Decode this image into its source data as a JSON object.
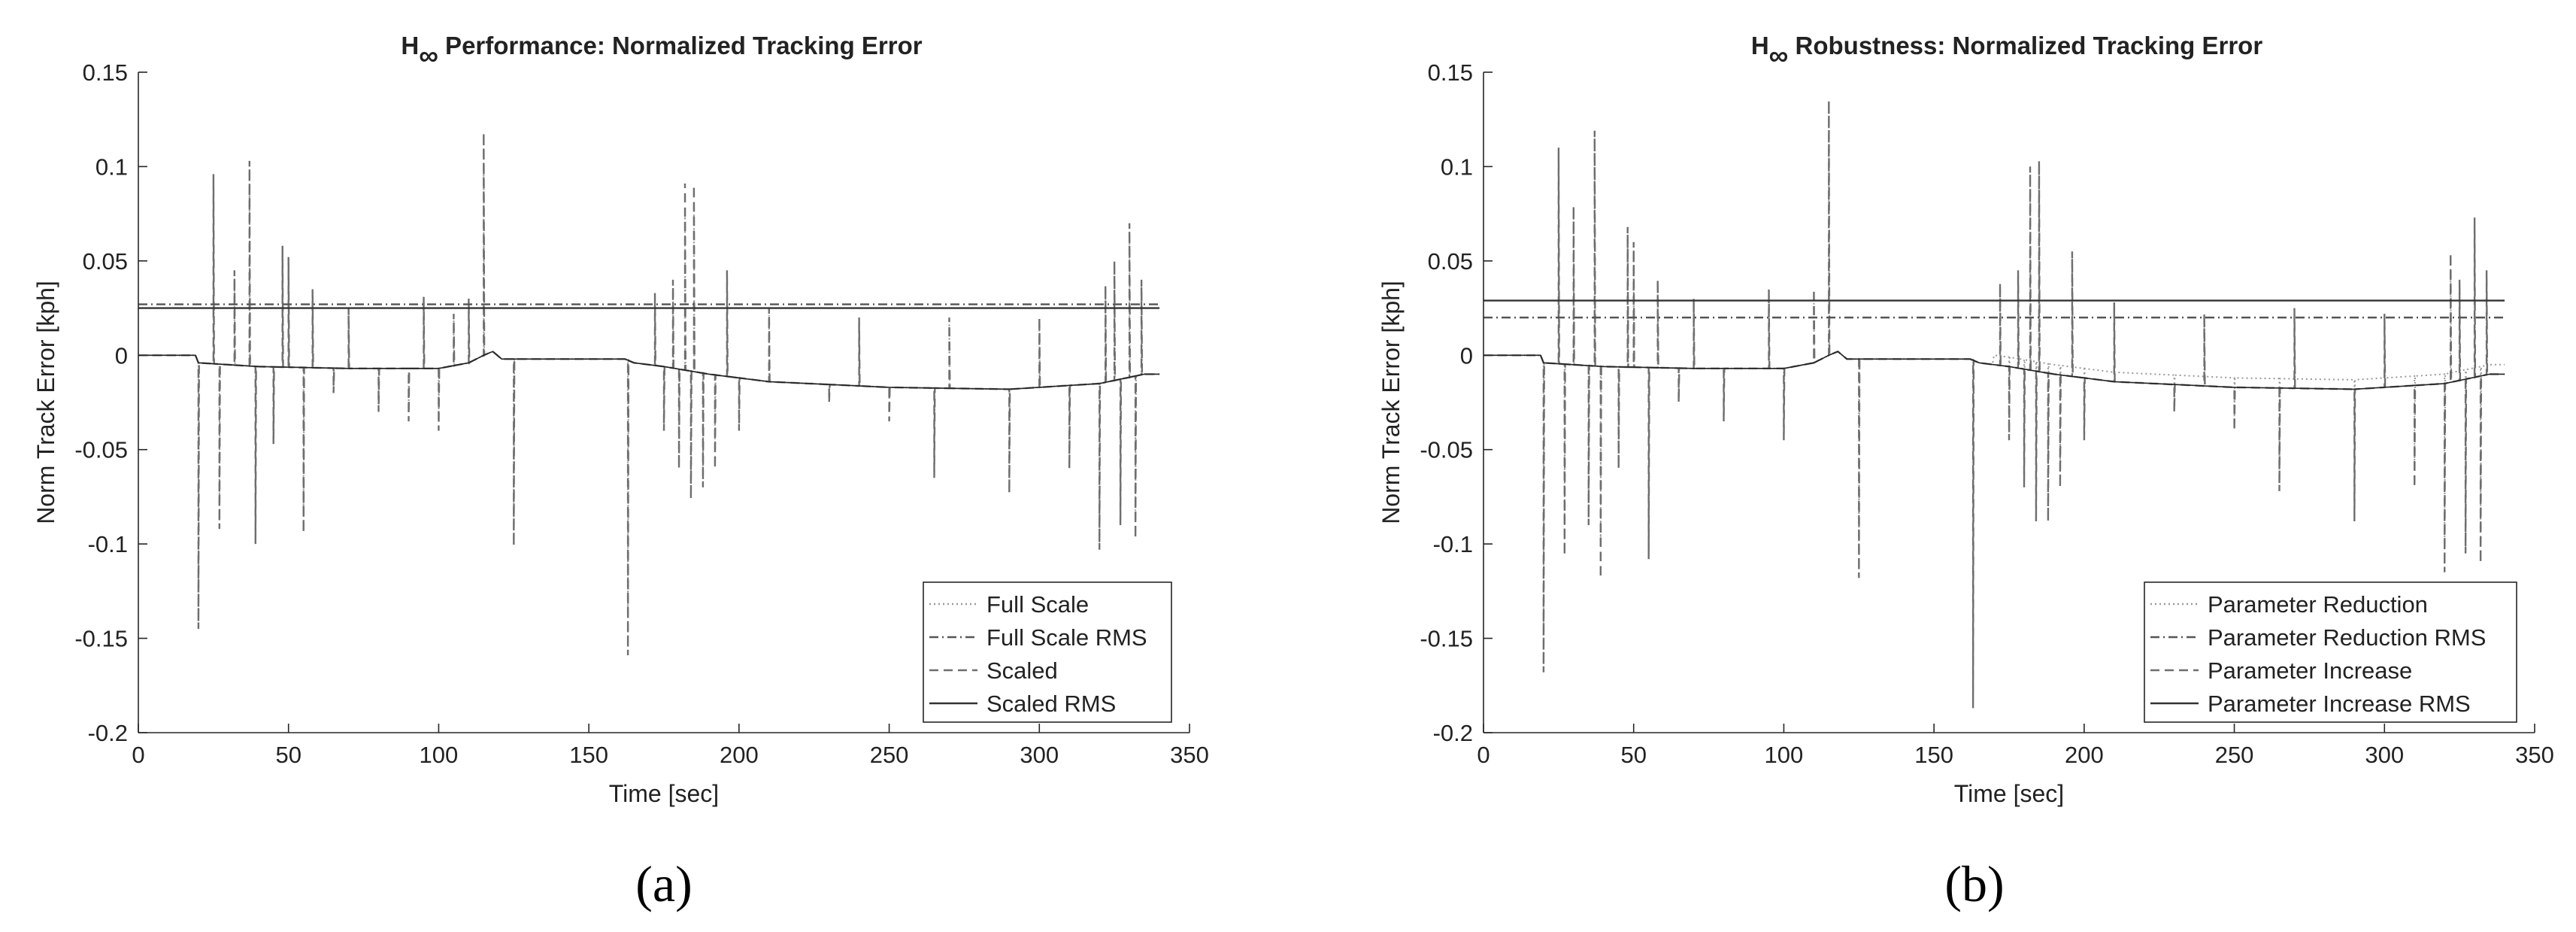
{
  "chart_data": [
    {
      "type": "line",
      "panel_label": "(a)",
      "title_prefix": "H",
      "title_subscript": "∞",
      "title_suffix": " Performance: Normalized Tracking Error",
      "xlabel": "Time [sec]",
      "ylabel": "Norm Track Error [kph]",
      "xlim": [
        0,
        350
      ],
      "ylim": [
        -0.2,
        0.15
      ],
      "x_ticks": [
        "0",
        "50",
        "100",
        "150",
        "200",
        "250",
        "300",
        "350"
      ],
      "y_ticks": [
        "-0.2",
        "-0.15",
        "-0.1",
        "-0.05",
        "0",
        "0.05",
        "0.1",
        "0.15"
      ],
      "grid": false,
      "legend_position": "bottom-right",
      "baseline": [
        [
          0,
          0
        ],
        [
          19,
          0
        ],
        [
          20,
          -0.004
        ],
        [
          40,
          -0.006
        ],
        [
          70,
          -0.007
        ],
        [
          100,
          -0.007
        ],
        [
          110,
          -0.004
        ],
        [
          115,
          0.0
        ],
        [
          118,
          0.002
        ],
        [
          121,
          -0.002
        ],
        [
          125,
          -0.002
        ],
        [
          162,
          -0.002
        ],
        [
          165,
          -0.004
        ],
        [
          175,
          -0.006
        ],
        [
          190,
          -0.01
        ],
        [
          210,
          -0.014
        ],
        [
          250,
          -0.017
        ],
        [
          290,
          -0.018
        ],
        [
          320,
          -0.015
        ],
        [
          335,
          -0.01
        ],
        [
          340,
          -0.01
        ]
      ],
      "spikes": [
        [
          20,
          -0.145
        ],
        [
          25,
          0.096
        ],
        [
          27,
          -0.092
        ],
        [
          32,
          0.045
        ],
        [
          37,
          0.103
        ],
        [
          39,
          -0.1
        ],
        [
          45,
          -0.047
        ],
        [
          48,
          0.058
        ],
        [
          50,
          0.052
        ],
        [
          55,
          -0.094
        ],
        [
          58,
          0.035
        ],
        [
          65,
          -0.02
        ],
        [
          70,
          0.025
        ],
        [
          80,
          -0.03
        ],
        [
          90,
          -0.035
        ],
        [
          95,
          0.031
        ],
        [
          100,
          -0.04
        ],
        [
          105,
          0.022
        ],
        [
          110,
          0.03
        ],
        [
          115,
          0.118
        ],
        [
          125,
          -0.101
        ],
        [
          163,
          -0.159
        ],
        [
          172,
          0.033
        ],
        [
          175,
          -0.04
        ],
        [
          178,
          0.04
        ],
        [
          180,
          -0.06
        ],
        [
          182,
          0.091
        ],
        [
          184,
          -0.076
        ],
        [
          185,
          0.09
        ],
        [
          188,
          -0.07
        ],
        [
          192,
          -0.06
        ],
        [
          196,
          0.045
        ],
        [
          200,
          -0.04
        ],
        [
          210,
          0.025
        ],
        [
          230,
          -0.025
        ],
        [
          240,
          0.02
        ],
        [
          250,
          -0.035
        ],
        [
          265,
          -0.065
        ],
        [
          270,
          0.02
        ],
        [
          290,
          -0.073
        ],
        [
          300,
          0.02
        ],
        [
          310,
          -0.06
        ],
        [
          320,
          -0.103
        ],
        [
          322,
          0.037
        ],
        [
          325,
          0.05
        ],
        [
          327,
          -0.09
        ],
        [
          330,
          0.07
        ],
        [
          332,
          -0.097
        ],
        [
          334,
          0.04
        ]
      ],
      "series": [
        {
          "name": "Full Scale",
          "style": "dotted"
        },
        {
          "name": "Full Scale RMS",
          "style": "dashdot",
          "value": 0.027
        },
        {
          "name": "Scaled",
          "style": "dashed"
        },
        {
          "name": "Scaled RMS",
          "style": "solid",
          "value": 0.025
        }
      ]
    },
    {
      "type": "line",
      "panel_label": "(b)",
      "title_prefix": "H",
      "title_subscript": "∞",
      "title_suffix": " Robustness: Normalized Tracking Error",
      "xlabel": "Time [sec]",
      "ylabel": "Norm Track Error [kph]",
      "xlim": [
        0,
        350
      ],
      "ylim": [
        -0.2,
        0.15
      ],
      "x_ticks": [
        "0",
        "50",
        "100",
        "150",
        "200",
        "250",
        "300",
        "350"
      ],
      "y_ticks": [
        "-0.2",
        "-0.15",
        "-0.1",
        "-0.05",
        "0",
        "0.05",
        "0.1",
        "0.15"
      ],
      "grid": false,
      "legend_position": "bottom-right",
      "baseline": [
        [
          0,
          0
        ],
        [
          19,
          0
        ],
        [
          20,
          -0.004
        ],
        [
          40,
          -0.006
        ],
        [
          70,
          -0.007
        ],
        [
          100,
          -0.007
        ],
        [
          110,
          -0.004
        ],
        [
          115,
          0.0
        ],
        [
          118,
          0.002
        ],
        [
          121,
          -0.002
        ],
        [
          125,
          -0.002
        ],
        [
          162,
          -0.002
        ],
        [
          165,
          -0.004
        ],
        [
          175,
          -0.006
        ],
        [
          190,
          -0.01
        ],
        [
          210,
          -0.014
        ],
        [
          250,
          -0.017
        ],
        [
          290,
          -0.018
        ],
        [
          320,
          -0.015
        ],
        [
          335,
          -0.01
        ],
        [
          340,
          -0.01
        ]
      ],
      "spikes": [
        [
          20,
          -0.168
        ],
        [
          25,
          0.11
        ],
        [
          27,
          -0.106
        ],
        [
          30,
          0.079
        ],
        [
          35,
          -0.09
        ],
        [
          37,
          0.119
        ],
        [
          39,
          -0.118
        ],
        [
          45,
          -0.06
        ],
        [
          48,
          0.068
        ],
        [
          50,
          0.06
        ],
        [
          55,
          -0.108
        ],
        [
          58,
          0.04
        ],
        [
          65,
          -0.025
        ],
        [
          70,
          0.03
        ],
        [
          80,
          -0.035
        ],
        [
          95,
          0.035
        ],
        [
          100,
          -0.045
        ],
        [
          110,
          0.035
        ],
        [
          115,
          0.135
        ],
        [
          125,
          -0.118
        ],
        [
          163,
          -0.187
        ],
        [
          172,
          0.038
        ],
        [
          175,
          -0.045
        ],
        [
          178,
          0.045
        ],
        [
          180,
          -0.07
        ],
        [
          182,
          0.1
        ],
        [
          184,
          -0.088
        ],
        [
          185,
          0.103
        ],
        [
          188,
          -0.088
        ],
        [
          192,
          -0.07
        ],
        [
          196,
          0.055
        ],
        [
          200,
          -0.045
        ],
        [
          210,
          0.028
        ],
        [
          230,
          -0.03
        ],
        [
          240,
          0.022
        ],
        [
          250,
          -0.04
        ],
        [
          265,
          -0.072
        ],
        [
          270,
          0.025
        ],
        [
          290,
          -0.088
        ],
        [
          300,
          0.022
        ],
        [
          310,
          -0.07
        ],
        [
          320,
          -0.115
        ],
        [
          322,
          0.054
        ],
        [
          325,
          0.04
        ],
        [
          327,
          -0.105
        ],
        [
          330,
          0.073
        ],
        [
          332,
          -0.11
        ],
        [
          334,
          0.045
        ]
      ],
      "extra_drift": {
        "from": 170,
        "to": 340,
        "start": -0.006,
        "end": -0.015
      },
      "series": [
        {
          "name": "Parameter Reduction",
          "style": "dotted"
        },
        {
          "name": "Parameter Reduction RMS",
          "style": "dashdot",
          "value": 0.02
        },
        {
          "name": "Parameter Increase",
          "style": "dashed"
        },
        {
          "name": "Parameter Increase RMS",
          "style": "solid",
          "value": 0.029
        }
      ]
    }
  ]
}
